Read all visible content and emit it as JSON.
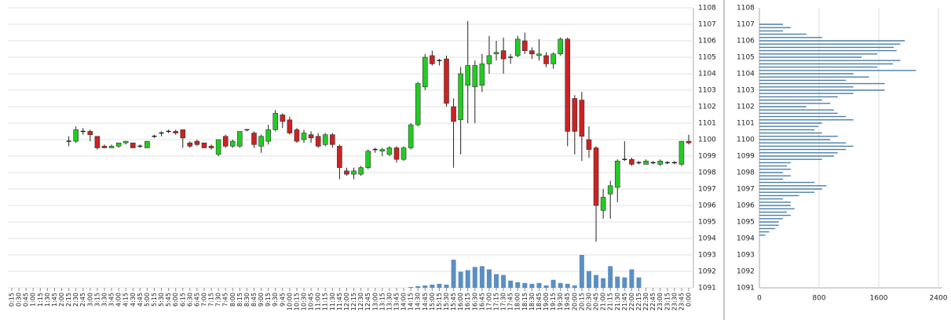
{
  "chart_data": [
    {
      "type": "candlestick",
      "categories": [
        "0:15",
        "0:30",
        "0:45",
        "1:00",
        "1:15",
        "1:30",
        "1:45",
        "2:00",
        "2:15",
        "2:30",
        "2:45",
        "3:00",
        "3:15",
        "3:30",
        "3:45",
        "4:00",
        "4:15",
        "4:30",
        "4:45",
        "5:00",
        "5:15",
        "5:30",
        "5:45",
        "6:00",
        "6:15",
        "6:30",
        "6:45",
        "7:00",
        "7:15",
        "7:30",
        "7:45",
        "8:00",
        "8:15",
        "8:30",
        "8:45",
        "9:00",
        "9:15",
        "9:30",
        "9:45",
        "10:00",
        "10:15",
        "10:30",
        "10:45",
        "11:00",
        "11:15",
        "11:30",
        "11:45",
        "12:00",
        "12:15",
        "12:30",
        "12:45",
        "13:00",
        "13:15",
        "13:30",
        "13:45",
        "14:00",
        "14:15",
        "14:30",
        "14:45",
        "15:00",
        "15:15",
        "15:30",
        "15:45",
        "16:00",
        "16:15",
        "16:30",
        "16:45",
        "17:00",
        "17:15",
        "17:30",
        "17:45",
        "18:00",
        "18:15",
        "18:30",
        "18:45",
        "19:00",
        "19:15",
        "19:30",
        "19:45",
        "20:00",
        "20:15",
        "20:30",
        "20:45",
        "21:00",
        "21:15",
        "21:30",
        "21:45",
        "22:00",
        "22:15",
        "22:30",
        "22:45",
        "23:00",
        "23:15",
        "23:30",
        "23:45",
        "0:00"
      ],
      "open": [
        null,
        null,
        null,
        null,
        null,
        null,
        null,
        null,
        1099.9,
        1099.9,
        1100.5,
        1100.5,
        1100.2,
        1099.6,
        1099.5,
        1099.6,
        1099.8,
        1099.8,
        1099.6,
        1099.5,
        1100.2,
        1100.4,
        1100.5,
        1100.5,
        1100.6,
        1099.8,
        1099.9,
        1099.8,
        1099.6,
        1099.1,
        1100.2,
        1099.6,
        1099.6,
        1100.6,
        1100.4,
        1099.6,
        1099.9,
        1100.6,
        1101.5,
        1101.2,
        1100.6,
        1100.0,
        1100.3,
        1100.2,
        1099.7,
        1100.3,
        1099.6,
        1098.1,
        1097.9,
        1097.9,
        1098.3,
        1099.4,
        1099.3,
        1099.1,
        1099.5,
        1098.8,
        1099.5,
        1100.9,
        1103.2,
        1105.1,
        1104.8,
        1104.9,
        1102.0,
        1101.2,
        1103.3,
        1103.2,
        1103.3,
        1104.6,
        1105.2,
        1105.4,
        1105.0,
        1105.1,
        1106.0,
        1105.4,
        1105.1,
        1105.1,
        1104.6,
        1105.2,
        1106.1,
        1102.5,
        1102.4,
        1100.0,
        1099.5,
        1095.7,
        1096.7,
        1097.1,
        1098.8,
        1098.8,
        1098.6,
        1098.5,
        1098.6,
        1098.5,
        1098.6,
        1098.6,
        1098.5,
        1099.9
      ],
      "high": [
        null,
        null,
        null,
        null,
        null,
        null,
        null,
        null,
        1100.2,
        1100.8,
        1100.7,
        1100.6,
        1100.2,
        1099.7,
        1099.7,
        1099.8,
        1099.9,
        1099.8,
        1099.7,
        1099.9,
        1100.3,
        1100.5,
        1100.6,
        1100.6,
        1100.6,
        1099.9,
        1100.0,
        1099.8,
        1099.7,
        1100.0,
        1100.3,
        1100.0,
        1100.5,
        1100.6,
        1100.5,
        1100.3,
        1100.9,
        1101.8,
        1101.6,
        1101.4,
        1100.7,
        1100.6,
        1100.5,
        1100.4,
        1100.4,
        1100.4,
        1099.7,
        1098.3,
        1098.3,
        1098.4,
        1099.4,
        1099.5,
        1099.5,
        1099.6,
        1099.6,
        1099.6,
        1101.0,
        1103.5,
        1105.2,
        1105.4,
        1104.9,
        1105.1,
        1102.5,
        1104.4,
        1107.2,
        1104.8,
        1105.2,
        1106.3,
        1106.0,
        1106.2,
        1105.2,
        1106.3,
        1106.5,
        1105.6,
        1106.1,
        1105.3,
        1105.3,
        1106.2,
        1106.2,
        1102.7,
        1102.9,
        1100.8,
        1099.6,
        1097.0,
        1097.5,
        1098.8,
        1099.9,
        1098.9,
        1098.7,
        1098.8,
        1098.7,
        1098.8,
        1098.7,
        1098.7,
        1099.9,
        1100.3
      ],
      "low": [
        null,
        null,
        null,
        null,
        null,
        null,
        null,
        null,
        1099.6,
        1099.8,
        1100.3,
        1099.9,
        1099.4,
        1099.5,
        1099.5,
        1099.5,
        1099.7,
        1099.5,
        1099.5,
        1099.5,
        1100.1,
        1100.2,
        1100.4,
        1100.3,
        1099.5,
        1099.5,
        1099.6,
        1099.5,
        1099.4,
        1099.0,
        1099.5,
        1099.5,
        1099.5,
        1100.5,
        1099.5,
        1099.2,
        1099.7,
        1100.5,
        1100.7,
        1100.3,
        1099.8,
        1099.8,
        1099.8,
        1099.5,
        1099.6,
        1099.5,
        1097.6,
        1097.8,
        1097.6,
        1097.8,
        1098.2,
        1099.2,
        1099.0,
        1099.0,
        1098.6,
        1098.7,
        1099.4,
        1100.8,
        1103.0,
        1104.5,
        1104.5,
        1102.0,
        1098.3,
        1099.1,
        1101.0,
        1101.0,
        1102.9,
        1104.0,
        1104.8,
        1104.0,
        1104.6,
        1105.0,
        1105.2,
        1104.9,
        1104.8,
        1104.4,
        1104.3,
        1105.1,
        1099.6,
        1099.1,
        1098.7,
        1098.9,
        1093.8,
        1095.2,
        1095.2,
        1096.2,
        1098.7,
        1098.4,
        1098.5,
        1098.5,
        1098.5,
        1098.4,
        1098.5,
        1098.5,
        1098.4,
        1099.7
      ],
      "close": [
        null,
        null,
        null,
        null,
        null,
        null,
        null,
        null,
        1099.9,
        1100.6,
        1100.5,
        1100.3,
        1099.5,
        1099.5,
        1099.6,
        1099.8,
        1099.9,
        1099.5,
        1099.6,
        1099.9,
        1100.2,
        1100.4,
        1100.5,
        1100.4,
        1100.1,
        1099.6,
        1099.7,
        1099.5,
        1099.5,
        1100.0,
        1099.6,
        1099.9,
        1100.5,
        1100.6,
        1099.7,
        1100.2,
        1100.6,
        1101.6,
        1101.1,
        1100.4,
        1099.9,
        1100.4,
        1100.1,
        1099.6,
        1100.3,
        1099.7,
        1098.3,
        1097.9,
        1098.1,
        1098.3,
        1099.3,
        1099.4,
        1099.4,
        1099.5,
        1098.8,
        1099.5,
        1100.9,
        1103.4,
        1105.0,
        1104.6,
        1104.8,
        1102.2,
        1101.1,
        1104.0,
        1104.5,
        1104.5,
        1104.6,
        1105.1,
        1105.3,
        1104.9,
        1105.0,
        1106.1,
        1105.4,
        1105.2,
        1105.2,
        1104.6,
        1105.2,
        1106.1,
        1100.5,
        1100.5,
        1100.2,
        1099.4,
        1096.0,
        1096.5,
        1097.2,
        1098.7,
        1098.8,
        1098.5,
        1098.6,
        1098.7,
        1098.6,
        1098.7,
        1098.6,
        1098.6,
        1099.9,
        1099.8
      ],
      "volume": [
        null,
        null,
        null,
        null,
        null,
        null,
        null,
        null,
        null,
        null,
        null,
        null,
        null,
        null,
        null,
        null,
        null,
        null,
        null,
        null,
        null,
        null,
        null,
        null,
        null,
        null,
        null,
        null,
        null,
        null,
        null,
        null,
        null,
        null,
        null,
        null,
        null,
        null,
        null,
        null,
        null,
        null,
        null,
        null,
        null,
        null,
        null,
        null,
        null,
        null,
        null,
        null,
        null,
        null,
        null,
        null,
        1,
        2,
        3,
        4,
        5,
        4,
        35,
        20,
        22,
        26,
        27,
        23,
        17,
        16,
        9,
        7,
        6,
        5,
        6,
        3,
        10,
        6,
        5,
        3,
        41,
        21,
        16,
        12,
        27,
        14,
        13,
        23,
        13,
        null,
        null,
        null,
        null,
        null,
        null,
        null
      ],
      "up_color": "#22cc22",
      "down_color": "#cc2222",
      "volume_color": "#5b8fc4",
      "ylim": [
        1091,
        1108
      ],
      "yticks": [
        1091,
        1092,
        1093,
        1094,
        1095,
        1096,
        1097,
        1098,
        1099,
        1100,
        1101,
        1102,
        1103,
        1104,
        1105,
        1106,
        1107,
        1108
      ],
      "grid": true
    },
    {
      "type": "hbar",
      "y": [
        1107.0,
        1106.8,
        1106.6,
        1106.4,
        1106.2,
        1106.0,
        1105.8,
        1105.6,
        1105.4,
        1105.2,
        1105.0,
        1104.8,
        1104.6,
        1104.4,
        1104.2,
        1104.0,
        1103.8,
        1103.6,
        1103.4,
        1103.2,
        1103.0,
        1102.8,
        1102.6,
        1102.4,
        1102.2,
        1102.0,
        1101.8,
        1101.6,
        1101.4,
        1101.2,
        1101.0,
        1100.8,
        1100.6,
        1100.4,
        1100.2,
        1100.0,
        1099.8,
        1099.6,
        1099.4,
        1099.2,
        1099.0,
        1098.8,
        1098.6,
        1098.4,
        1098.2,
        1098.0,
        1097.8,
        1097.6,
        1097.4,
        1097.2,
        1097.0,
        1096.8,
        1096.6,
        1096.4,
        1096.2,
        1096.0,
        1095.8,
        1095.6,
        1095.4,
        1095.2,
        1095.0,
        1094.8,
        1094.6,
        1094.4,
        1094.2
      ],
      "values": [
        316,
        420,
        316,
        630,
        840,
        1950,
        1890,
        1800,
        1840,
        1580,
        1370,
        1890,
        1790,
        1580,
        2100,
        1260,
        1470,
        1160,
        1680,
        1260,
        1680,
        1260,
        1050,
        840,
        950,
        630,
        1000,
        1050,
        1160,
        1260,
        840,
        790,
        740,
        840,
        1050,
        950,
        1160,
        1260,
        1160,
        1050,
        1000,
        840,
        420,
        370,
        420,
        316,
        420,
        316,
        740,
        900,
        840,
        740,
        530,
        316,
        420,
        420,
        470,
        370,
        420,
        316,
        260,
        260,
        210,
        130,
        80
      ],
      "color": "#4a7ea8",
      "xlim": [
        0,
        2400
      ],
      "xticks": [
        0,
        800,
        1600,
        2400
      ],
      "ylim": [
        1091,
        1108
      ],
      "yticks": [
        1091,
        1092,
        1093,
        1094,
        1095,
        1096,
        1097,
        1098,
        1099,
        1100,
        1101,
        1102,
        1103,
        1104,
        1105,
        1106,
        1107,
        1108
      ],
      "grid": true
    }
  ]
}
